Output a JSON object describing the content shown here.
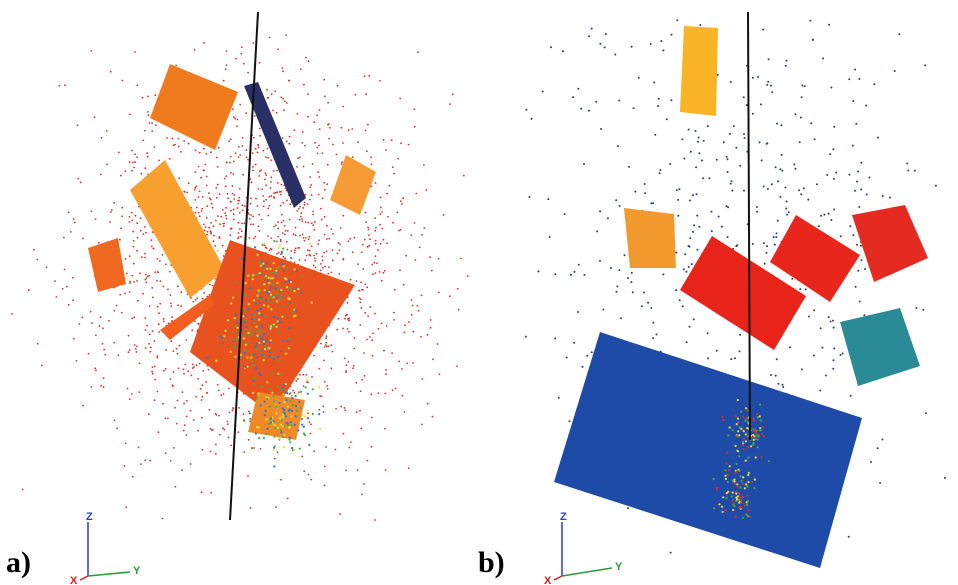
{
  "panels": [
    {
      "label": "a)",
      "axes": {
        "z": "Z",
        "x": "X",
        "y": "Y"
      },
      "colors": {
        "points": "#d8322b",
        "planes": [
          "#f07a1e",
          "#f7a030",
          "#ef6a20",
          "#f59a34",
          "#e8521e",
          "#f35e20",
          "#ef3d1a",
          "#f08a28",
          "#f28c2a"
        ],
        "dark_plane": "#2a2f66",
        "cluster": [
          "#e6e23a",
          "#4aa84a",
          "#2f6fd6"
        ]
      }
    },
    {
      "label": "b)",
      "axes": {
        "z": "Z",
        "x": "X",
        "y": "Y"
      },
      "colors": {
        "points": "#2c3f6a",
        "planes": [
          "#f8b424",
          "#f39a2f",
          "#e8231a",
          "#e8261c",
          "#e52a22",
          "#2a8a95",
          "#1e4aa8"
        ],
        "cluster": [
          "#e6e23a",
          "#4aa84a",
          "#d8322b"
        ]
      }
    }
  ]
}
